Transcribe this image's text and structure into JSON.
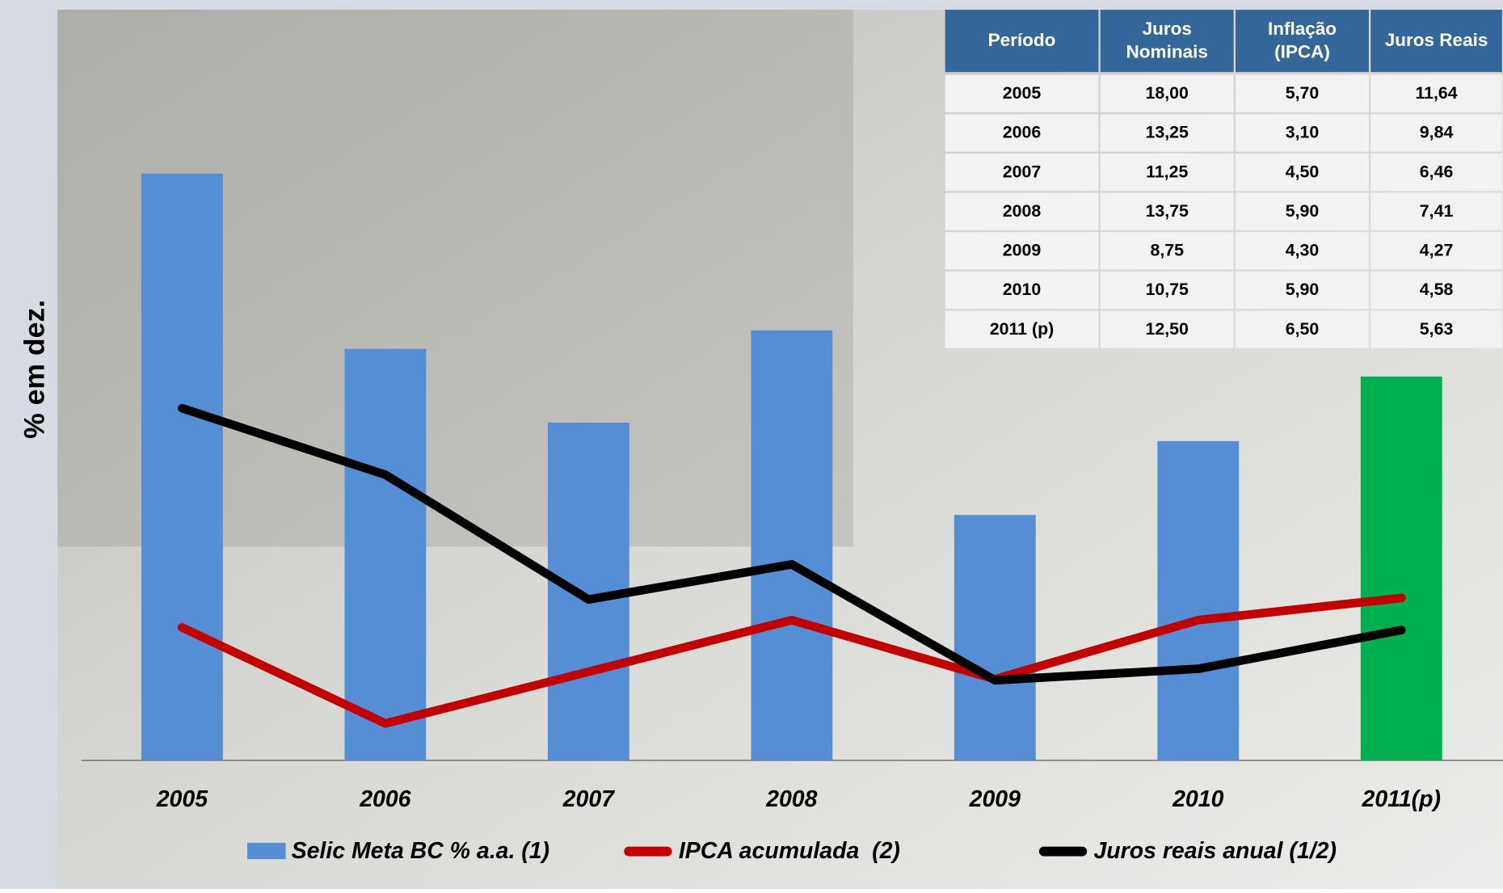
{
  "chart_data": {
    "type": "combo",
    "ylabel": "% em dez.",
    "categories": [
      "2005",
      "2006",
      "2007",
      "2008",
      "2009",
      "2010",
      "2011(p)"
    ],
    "ylim": [
      2.1,
      22.4
    ],
    "series": [
      {
        "name": "Selic Meta BC % a.a. (1)",
        "type": "bar",
        "color": "#558ED5",
        "colors": [
          "#558ED5",
          "#558ED5",
          "#558ED5",
          "#558ED5",
          "#558ED5",
          "#558ED5",
          "#00B050"
        ],
        "values": [
          18.0,
          13.25,
          11.25,
          13.75,
          8.75,
          10.75,
          12.5
        ]
      },
      {
        "name": "IPCA acumulada  (2)",
        "type": "line",
        "color": "#C00000",
        "values": [
          5.7,
          3.1,
          4.5,
          5.9,
          4.3,
          5.9,
          6.5
        ]
      },
      {
        "name": "Juros reais anual (1/2)",
        "type": "line",
        "color": "#000000",
        "values": [
          11.64,
          9.84,
          6.46,
          7.41,
          4.27,
          4.58,
          5.63
        ]
      }
    ]
  },
  "table": {
    "header": [
      [
        "Período"
      ],
      [
        "Juros",
        "Nominais"
      ],
      [
        "Inflação",
        "(IPCA)"
      ],
      [
        "Juros Reais"
      ]
    ],
    "rows": [
      [
        "2005",
        "18,00",
        "5,70",
        "11,64"
      ],
      [
        "2006",
        "13,25",
        "3,10",
        "9,84"
      ],
      [
        "2007",
        "11,25",
        "4,50",
        "6,46"
      ],
      [
        "2008",
        "13,75",
        "5,90",
        "7,41"
      ],
      [
        "2009",
        "8,75",
        "4,30",
        "4,27"
      ],
      [
        "2010",
        "10,75",
        "5,90",
        "4,58"
      ],
      [
        "2011 (p)",
        "12,50",
        "6,50",
        "5,63"
      ]
    ]
  }
}
